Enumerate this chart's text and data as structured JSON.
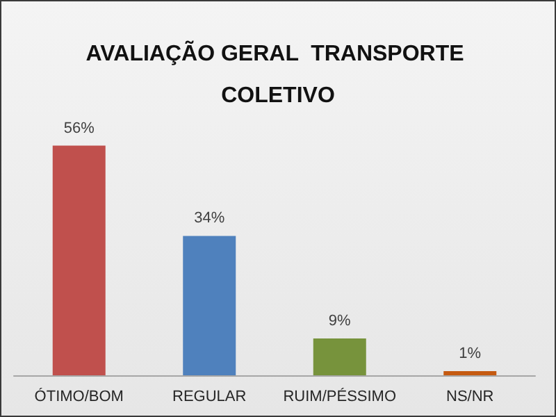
{
  "chart_data": {
    "type": "bar",
    "title": "AVALIAÇÃO GERAL  TRANSPORTE COLETIVO",
    "categories": [
      "ÓTIMO/BOM",
      "REGULAR",
      "RUIM/PÉSSIMO",
      "NS/NR"
    ],
    "values": [
      56,
      34,
      9,
      1
    ],
    "colors": [
      "#c0504d",
      "#4f81bd",
      "#77933c",
      "#c55a11"
    ],
    "value_labels": [
      "56%",
      "34%",
      "9%",
      "1%"
    ]
  }
}
